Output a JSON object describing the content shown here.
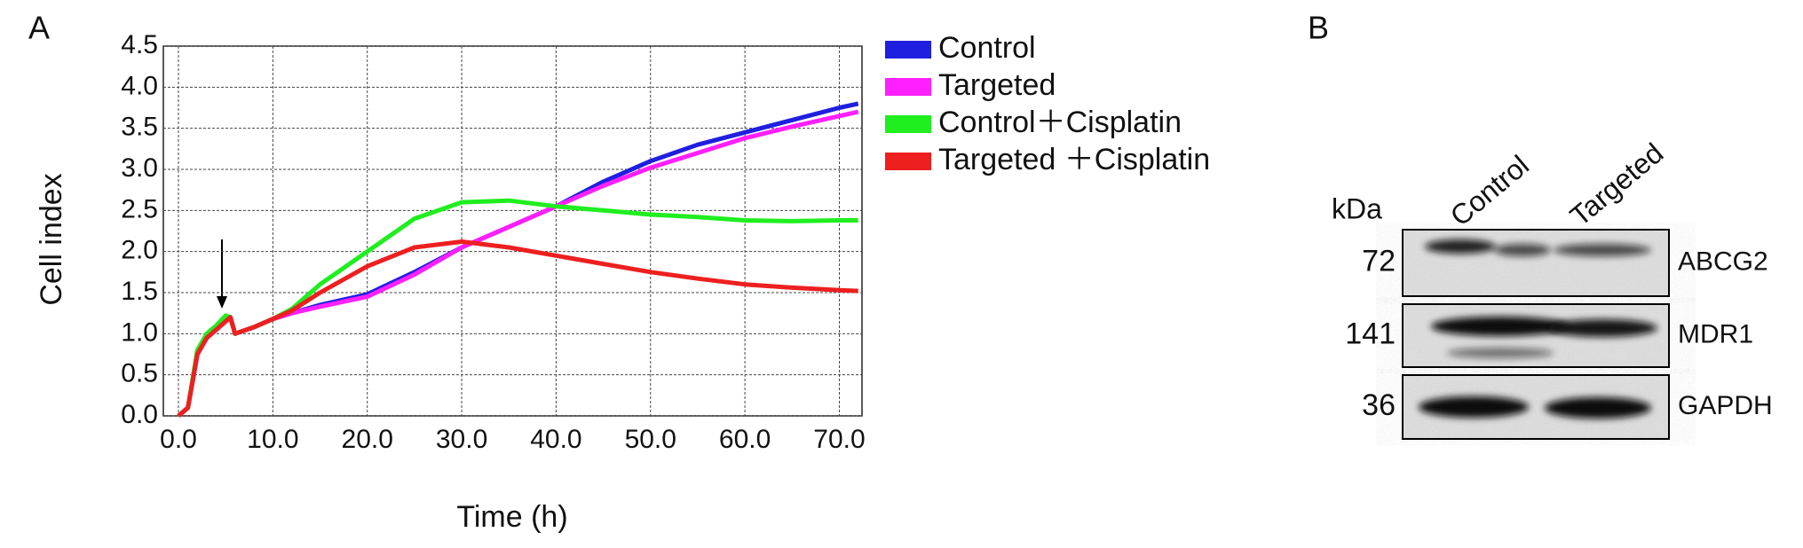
{
  "panel_labels": [
    "A",
    "B"
  ],
  "chart_data": {
    "type": "line",
    "xlabel": "Time (h)",
    "ylabel": "Cell index",
    "x": [
      0,
      1,
      2,
      3,
      4,
      5,
      5.5,
      6,
      8,
      10,
      12,
      15,
      20,
      25,
      30,
      35,
      40,
      45,
      50,
      55,
      60,
      65,
      70,
      72
    ],
    "series": [
      {
        "name": "Control",
        "color": "#1f1fe0",
        "values": [
          0,
          0.1,
          0.75,
          0.95,
          1.05,
          1.15,
          1.2,
          1.0,
          1.08,
          1.18,
          1.25,
          1.35,
          1.48,
          1.75,
          2.05,
          2.3,
          2.55,
          2.85,
          3.1,
          3.3,
          3.45,
          3.6,
          3.75,
          3.8
        ]
      },
      {
        "name": "Targeted",
        "color": "#ff1fff",
        "values": [
          0,
          0.1,
          0.75,
          0.95,
          1.05,
          1.15,
          1.2,
          1.0,
          1.08,
          1.18,
          1.25,
          1.33,
          1.45,
          1.72,
          2.05,
          2.3,
          2.55,
          2.8,
          3.02,
          3.2,
          3.38,
          3.52,
          3.65,
          3.7
        ]
      },
      {
        "name": "Control＋Cisplatin",
        "color": "#1fee1f",
        "values": [
          0,
          0.1,
          0.8,
          1.0,
          1.1,
          1.22,
          1.2,
          1.0,
          1.08,
          1.18,
          1.3,
          1.6,
          2.0,
          2.4,
          2.6,
          2.62,
          2.55,
          2.5,
          2.45,
          2.42,
          2.38,
          2.37,
          2.38,
          2.38
        ]
      },
      {
        "name": "Targeted ＋Cisplatin",
        "color": "#ee1f1f",
        "values": [
          0,
          0.1,
          0.75,
          0.95,
          1.05,
          1.15,
          1.2,
          1.0,
          1.08,
          1.18,
          1.28,
          1.5,
          1.82,
          2.05,
          2.12,
          2.05,
          1.95,
          1.85,
          1.75,
          1.67,
          1.6,
          1.56,
          1.53,
          1.52
        ]
      }
    ],
    "xlim": [
      -1.6,
      72.4
    ],
    "ylim": [
      0,
      4.5
    ],
    "xticks": [
      {
        "value": 0,
        "label": "0.0"
      },
      {
        "value": 10,
        "label": "10.0"
      },
      {
        "value": 20,
        "label": "20.0"
      },
      {
        "value": 30,
        "label": "30.0"
      },
      {
        "value": 40,
        "label": "40.0"
      },
      {
        "value": 50,
        "label": "50.0"
      },
      {
        "value": 60,
        "label": "60.0"
      },
      {
        "value": 70,
        "label": "70.0"
      }
    ],
    "yticks": [
      {
        "value": 0,
        "label": "0.0"
      },
      {
        "value": 0.5,
        "label": "0.5"
      },
      {
        "value": 1,
        "label": "1.0"
      },
      {
        "value": 1.5,
        "label": "1.5"
      },
      {
        "value": 2,
        "label": "2.0"
      },
      {
        "value": 2.5,
        "label": "2.5"
      },
      {
        "value": 3,
        "label": "3.0"
      },
      {
        "value": 3.5,
        "label": "3.5"
      },
      {
        "value": 4,
        "label": "4.0"
      },
      {
        "value": 4.5,
        "label": "4.5"
      }
    ],
    "grid": true
  },
  "blot": {
    "unit": "kDa",
    "lanes": [
      "Control",
      "Targeted"
    ],
    "rows": [
      {
        "size": "72",
        "protein": "ABCG2"
      },
      {
        "size": "141",
        "protein": "MDR1"
      },
      {
        "size": "36",
        "protein": "GAPDH"
      }
    ]
  }
}
